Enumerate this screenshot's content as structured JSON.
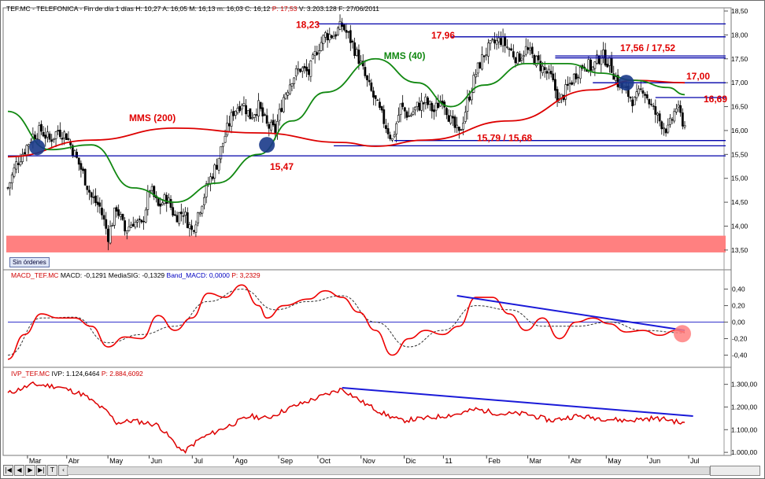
{
  "header_price": {
    "ticker": "TEF.MC",
    "name": "TELEFONICA",
    "period": "Fin de día 1 días",
    "H": "H: 10,27",
    "A": "A: 16,05",
    "M": "M: 16,13",
    "m": "m: 16,03",
    "C": "C: 16,12",
    "P": "P: 17,53",
    "V": "V: 3.203.128",
    "F": "F: 27/06/2011"
  },
  "header_macd": {
    "prefix": "MACD_TEF.MC",
    "macd": "MACD: -0,1291",
    "signal": "MediaSIG: -0,1329",
    "band": "Band_MACD: 0,0000",
    "p": "P: 3,2329"
  },
  "header_ivp": {
    "prefix": "IVP_TEF.MC",
    "ivp": "IVP: 1.124,6464",
    "p": "P: 2.884,6092"
  },
  "sin_ordenes": "Sin órdenes",
  "nav_buttons": [
    "|◀",
    "◀",
    "▶",
    "▶|",
    "T",
    "‹"
  ],
  "colors": {
    "price_candles": "#000000",
    "mms200": "#dd0000",
    "mms40": "#118811",
    "levels": "#0000aa",
    "support_zone": "#ff8080",
    "macd_line": "#ee0000",
    "signal_line": "#333333",
    "ivp_line": "#dd0000",
    "trendline": "#1a1ad8",
    "circle_marker": "#1a3a8a",
    "annotation_text": "#e00000"
  },
  "chart_data": [
    {
      "type": "candlestick",
      "x_axis_labels": [
        "Mar",
        "Abr",
        "May",
        "Jun",
        "Jul",
        "Ago",
        "Sep",
        "Oct",
        "Nov",
        "Dic",
        "11",
        "Feb",
        "Mar",
        "Abr",
        "May",
        "Jun",
        "Jul"
      ],
      "y_ticks": [
        "18,50",
        "18,00",
        "17,50",
        "17,00",
        "16,50",
        "16,00",
        "15,50",
        "15,00",
        "14,50",
        "14,00",
        "13,50"
      ],
      "ylim": [
        13.35,
        18.5
      ],
      "price_path": [
        [
          0,
          14.8
        ],
        [
          4,
          15.3
        ],
        [
          8,
          15.6
        ],
        [
          12,
          15.9
        ],
        [
          16,
          16.0
        ],
        [
          20,
          15.8
        ],
        [
          24,
          16.0
        ],
        [
          28,
          15.9
        ],
        [
          32,
          15.5
        ],
        [
          36,
          15.1
        ],
        [
          40,
          14.6
        ],
        [
          44,
          14.4
        ],
        [
          48,
          13.8
        ],
        [
          52,
          14.4
        ],
        [
          56,
          13.9
        ],
        [
          60,
          14.1
        ],
        [
          64,
          14.0
        ],
        [
          68,
          14.8
        ],
        [
          72,
          14.4
        ],
        [
          76,
          14.6
        ],
        [
          80,
          14.2
        ],
        [
          84,
          14.3
        ],
        [
          88,
          13.9
        ],
        [
          92,
          14.4
        ],
        [
          96,
          14.9
        ],
        [
          100,
          15.3
        ],
        [
          104,
          15.9
        ],
        [
          108,
          16.4
        ],
        [
          112,
          16.6
        ],
        [
          116,
          16.3
        ],
        [
          120,
          16.5
        ],
        [
          124,
          16.1
        ],
        [
          128,
          16.0
        ],
        [
          132,
          16.7
        ],
        [
          136,
          17.1
        ],
        [
          140,
          17.3
        ],
        [
          144,
          17.2
        ],
        [
          148,
          17.7
        ],
        [
          152,
          18.0
        ],
        [
          156,
          18.0
        ],
        [
          160,
          18.2
        ],
        [
          164,
          17.9
        ],
        [
          168,
          17.5
        ],
        [
          172,
          17.0
        ],
        [
          176,
          16.6
        ],
        [
          180,
          16.2
        ],
        [
          184,
          15.8
        ],
        [
          188,
          16.5
        ],
        [
          192,
          16.3
        ],
        [
          196,
          16.5
        ],
        [
          200,
          16.6
        ],
        [
          204,
          16.4
        ],
        [
          208,
          16.7
        ],
        [
          212,
          16.2
        ],
        [
          216,
          15.9
        ],
        [
          220,
          16.6
        ],
        [
          224,
          17.2
        ],
        [
          228,
          17.6
        ],
        [
          232,
          17.8
        ],
        [
          236,
          17.9
        ],
        [
          240,
          17.7
        ],
        [
          244,
          17.5
        ],
        [
          248,
          17.7
        ],
        [
          252,
          17.5
        ],
        [
          256,
          17.3
        ],
        [
          260,
          17.1
        ],
        [
          264,
          16.6
        ],
        [
          268,
          16.9
        ],
        [
          272,
          17.2
        ],
        [
          276,
          17.4
        ],
        [
          280,
          17.3
        ],
        [
          284,
          17.6
        ],
        [
          288,
          17.4
        ],
        [
          292,
          17.0
        ],
        [
          296,
          16.8
        ],
        [
          300,
          16.6
        ],
        [
          304,
          16.9
        ],
        [
          308,
          16.5
        ],
        [
          312,
          16.2
        ],
        [
          316,
          16.0
        ],
        [
          320,
          16.5
        ],
        [
          324,
          16.1
        ]
      ],
      "n_bars": 325,
      "series": [
        {
          "name": "MMS (200)",
          "values": [
            [
              0,
              15.45
            ],
            [
              40,
              15.8
            ],
            [
              80,
              16.05
            ],
            [
              120,
              15.95
            ],
            [
              160,
              15.75
            ],
            [
              176,
              15.67
            ],
            [
              200,
              15.8
            ],
            [
              240,
              16.2
            ],
            [
              280,
              16.85
            ],
            [
              300,
              17.05
            ],
            [
              324,
              17.0
            ]
          ]
        },
        {
          "name": "MMS (40)",
          "values": [
            [
              0,
              16.4
            ],
            [
              20,
              15.6
            ],
            [
              40,
              15.7
            ],
            [
              60,
              14.8
            ],
            [
              80,
              14.5
            ],
            [
              100,
              14.9
            ],
            [
              120,
              15.5
            ],
            [
              136,
              16.2
            ],
            [
              152,
              16.8
            ],
            [
              176,
              17.5
            ],
            [
              196,
              17.0
            ],
            [
              212,
              16.5
            ],
            [
              228,
              16.95
            ],
            [
              248,
              17.4
            ],
            [
              268,
              17.4
            ],
            [
              284,
              17.2
            ],
            [
              300,
              17.05
            ],
            [
              316,
              16.9
            ],
            [
              324,
              16.75
            ]
          ]
        }
      ],
      "levels": [
        {
          "value": 18.23,
          "label": "18,23",
          "x_start": 148
        },
        {
          "value": 17.96,
          "label": "17,96",
          "x_start": 212
        },
        {
          "value": 17.56,
          "label": "17,56 / 17,52",
          "x_start": 262
        },
        {
          "value": 17.52,
          "label": "",
          "x_start": 262
        },
        {
          "value": 17.0,
          "label": "17,00",
          "x_start": 280
        },
        {
          "value": 16.69,
          "label": "16,69",
          "x_start": 310
        },
        {
          "value": 15.79,
          "label": "15,79 / 15,68",
          "x_start": 185
        },
        {
          "value": 15.68,
          "label": "",
          "x_start": 156
        },
        {
          "value": 15.47,
          "label": "15,47",
          "x_start": 0
        }
      ],
      "support_zone": [
        13.45,
        13.8
      ],
      "ma_labels": [
        {
          "text": "MMS (200)",
          "x": 58,
          "y": 16.2
        },
        {
          "text": "MMS (40)",
          "x": 180,
          "y": 17.5
        }
      ],
      "markers": [
        [
          14,
          15.65
        ],
        [
          124,
          15.7
        ],
        [
          296,
          17.0
        ]
      ]
    },
    {
      "type": "line",
      "y_ticks": [
        "0,40",
        "0,20",
        "0,00",
        "-0,20",
        "-0,40"
      ],
      "ylim": [
        -0.5,
        0.52
      ],
      "series": [
        {
          "name": "MACD",
          "values": [
            [
              0,
              -0.45
            ],
            [
              8,
              -0.15
            ],
            [
              16,
              0.1
            ],
            [
              24,
              0.05
            ],
            [
              32,
              0.05
            ],
            [
              40,
              -0.05
            ],
            [
              48,
              -0.3
            ],
            [
              56,
              -0.18
            ],
            [
              64,
              -0.2
            ],
            [
              72,
              0.08
            ],
            [
              80,
              -0.1
            ],
            [
              88,
              0.05
            ],
            [
              96,
              0.35
            ],
            [
              104,
              0.3
            ],
            [
              112,
              0.45
            ],
            [
              120,
              0.2
            ],
            [
              124,
              0.05
            ],
            [
              132,
              0.2
            ],
            [
              144,
              0.28
            ],
            [
              152,
              0.38
            ],
            [
              160,
              0.3
            ],
            [
              168,
              0.12
            ],
            [
              176,
              -0.1
            ],
            [
              184,
              -0.4
            ],
            [
              192,
              -0.2
            ],
            [
              200,
              -0.1
            ],
            [
              208,
              -0.15
            ],
            [
              216,
              -0.05
            ],
            [
              224,
              0.3
            ],
            [
              232,
              0.3
            ],
            [
              240,
              0.1
            ],
            [
              248,
              -0.1
            ],
            [
              256,
              0.05
            ],
            [
              264,
              -0.2
            ],
            [
              272,
              0.0
            ],
            [
              280,
              0.05
            ],
            [
              288,
              -0.02
            ],
            [
              296,
              -0.12
            ],
            [
              304,
              -0.1
            ],
            [
              312,
              -0.16
            ],
            [
              320,
              -0.1
            ],
            [
              324,
              -0.12
            ]
          ]
        },
        {
          "name": "MediaSIG",
          "values": [
            [
              0,
              -0.4
            ],
            [
              16,
              0.05
            ],
            [
              32,
              0.06
            ],
            [
              48,
              -0.25
            ],
            [
              64,
              -0.15
            ],
            [
              80,
              -0.05
            ],
            [
              96,
              0.25
            ],
            [
              112,
              0.4
            ],
            [
              128,
              0.15
            ],
            [
              144,
              0.25
            ],
            [
              160,
              0.32
            ],
            [
              176,
              0.0
            ],
            [
              192,
              -0.3
            ],
            [
              208,
              -0.1
            ],
            [
              224,
              0.2
            ],
            [
              240,
              0.15
            ],
            [
              256,
              -0.05
            ],
            [
              272,
              -0.05
            ],
            [
              288,
              0.0
            ],
            [
              304,
              -0.1
            ],
            [
              324,
              -0.13
            ]
          ]
        }
      ],
      "trendline": [
        [
          215,
          0.32
        ],
        [
          324,
          -0.1
        ]
      ],
      "marker": [
        324,
        -0.14
      ]
    },
    {
      "type": "line",
      "y_ticks": [
        "1.300,00",
        "1.200,00",
        "1.100,00",
        "1.000,00"
      ],
      "ylim": [
        990,
        1330
      ],
      "series": [
        {
          "name": "IVP",
          "values": [
            [
              0,
              1260
            ],
            [
              12,
              1300
            ],
            [
              24,
              1290
            ],
            [
              36,
              1255
            ],
            [
              48,
              1175
            ],
            [
              52,
              1130
            ],
            [
              60,
              1140
            ],
            [
              72,
              1120
            ],
            [
              84,
              1000
            ],
            [
              92,
              1060
            ],
            [
              104,
              1110
            ],
            [
              116,
              1160
            ],
            [
              124,
              1150
            ],
            [
              136,
              1200
            ],
            [
              148,
              1240
            ],
            [
              160,
              1280
            ],
            [
              170,
              1220
            ],
            [
              180,
              1170
            ],
            [
              188,
              1140
            ],
            [
              200,
              1150
            ],
            [
              216,
              1170
            ],
            [
              224,
              1190
            ],
            [
              236,
              1170
            ],
            [
              248,
              1170
            ],
            [
              260,
              1140
            ],
            [
              272,
              1160
            ],
            [
              284,
              1150
            ],
            [
              296,
              1140
            ],
            [
              308,
              1150
            ],
            [
              316,
              1145
            ],
            [
              324,
              1125
            ]
          ]
        }
      ],
      "trendline": [
        [
          160,
          1285
        ],
        [
          328,
          1160
        ]
      ]
    }
  ]
}
